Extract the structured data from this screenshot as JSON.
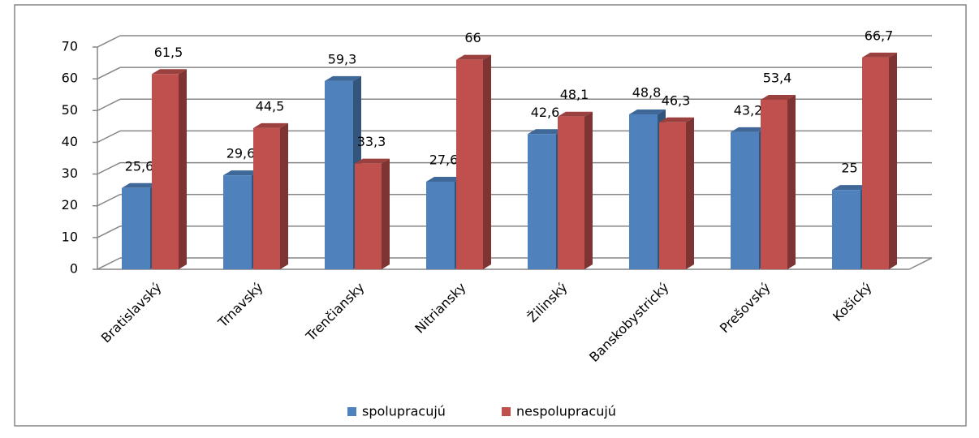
{
  "chart_data": {
    "type": "bar3d",
    "categories": [
      "Bratislavský",
      "Trnavský",
      "Trenčiansky",
      "Nitriansky",
      "Žilinský",
      "Banskobystrický",
      "Prešovský",
      "Košický"
    ],
    "series": [
      {
        "name": "spolupracujú",
        "color": "#4f81bd",
        "values": [
          25.6,
          29.6,
          59.3,
          27.6,
          42.6,
          48.8,
          43.2,
          25
        ],
        "value_labels": [
          "25,6",
          "29,6",
          "59,3",
          "27,6",
          "42,6",
          "48,8",
          "43,2",
          "25"
        ]
      },
      {
        "name": "nespolupracujú",
        "color": "#c0504d",
        "values": [
          61.5,
          44.5,
          33.3,
          66,
          48.1,
          46.3,
          53.4,
          66.7
        ],
        "value_labels": [
          "61,5",
          "44,5",
          "33,3",
          "66",
          "48,1",
          "46,3",
          "53,4",
          "66,7"
        ]
      }
    ],
    "ylim": [
      0,
      70
    ],
    "yticks": [
      0,
      10,
      20,
      30,
      40,
      50,
      60,
      70
    ],
    "grid": true,
    "legend": "bottom"
  }
}
